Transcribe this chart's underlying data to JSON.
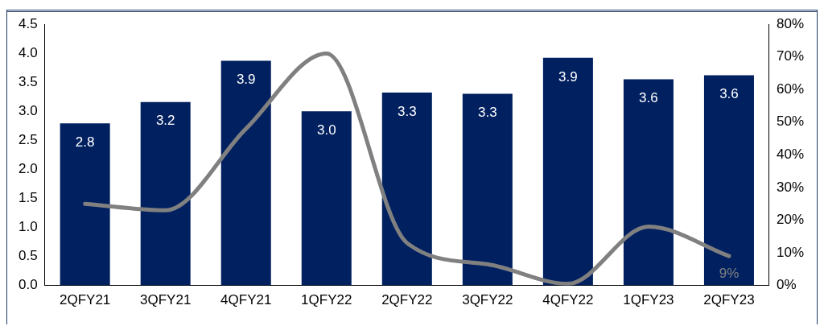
{
  "chart_data": {
    "type": "bar",
    "categories": [
      "2QFY21",
      "3QFY21",
      "4QFY21",
      "1QFY22",
      "2QFY22",
      "3QFY22",
      "4QFY22",
      "1QFY23",
      "2QFY23"
    ],
    "series": [
      {
        "color": "#002060",
        "values": [
          2.79,
          3.16,
          3.87,
          3.0,
          3.32,
          3.3,
          3.92,
          3.55,
          3.62
        ],
        "value_labels": [
          "2.8",
          "3.2",
          "3.9",
          "3.0",
          "3.3",
          "3.3",
          "3.9",
          "3.6",
          "3.6"
        ]
      },
      {
        "type": "line",
        "axis": "y2",
        "color": "#808080",
        "values": [
          25,
          23,
          48,
          71,
          13,
          6.5,
          0.5,
          18,
          9
        ],
        "value_labels": [
          null,
          null,
          null,
          null,
          null,
          null,
          null,
          null,
          "9%"
        ]
      }
    ],
    "ylim": [
      0,
      4.5
    ],
    "yticks": [
      {
        "value": 0,
        "label": "0.0"
      },
      {
        "value": 0.5,
        "label": "0.5"
      },
      {
        "value": 1,
        "label": "1.0"
      },
      {
        "value": 1.5,
        "label": "1.5"
      },
      {
        "value": 2,
        "label": "2.0"
      },
      {
        "value": 2.5,
        "label": "2.5"
      },
      {
        "value": 3,
        "label": "3.0"
      },
      {
        "value": 3.5,
        "label": "3.5"
      },
      {
        "value": 4,
        "label": "4.0"
      },
      {
        "value": 4.5,
        "label": "4.5"
      }
    ],
    "y2lim": [
      0,
      80
    ],
    "y2ticks": [
      {
        "value": 0,
        "label": "0%"
      },
      {
        "value": 10,
        "label": "10%"
      },
      {
        "value": 20,
        "label": "20%"
      },
      {
        "value": 30,
        "label": "30%"
      },
      {
        "value": 40,
        "label": "40%"
      },
      {
        "value": 50,
        "label": "50%"
      },
      {
        "value": 60,
        "label": "60%"
      },
      {
        "value": 70,
        "label": "70%"
      },
      {
        "value": 80,
        "label": "80%"
      }
    ],
    "grid": false,
    "legend": false,
    "marker": "none",
    "line_style": "solid"
  }
}
